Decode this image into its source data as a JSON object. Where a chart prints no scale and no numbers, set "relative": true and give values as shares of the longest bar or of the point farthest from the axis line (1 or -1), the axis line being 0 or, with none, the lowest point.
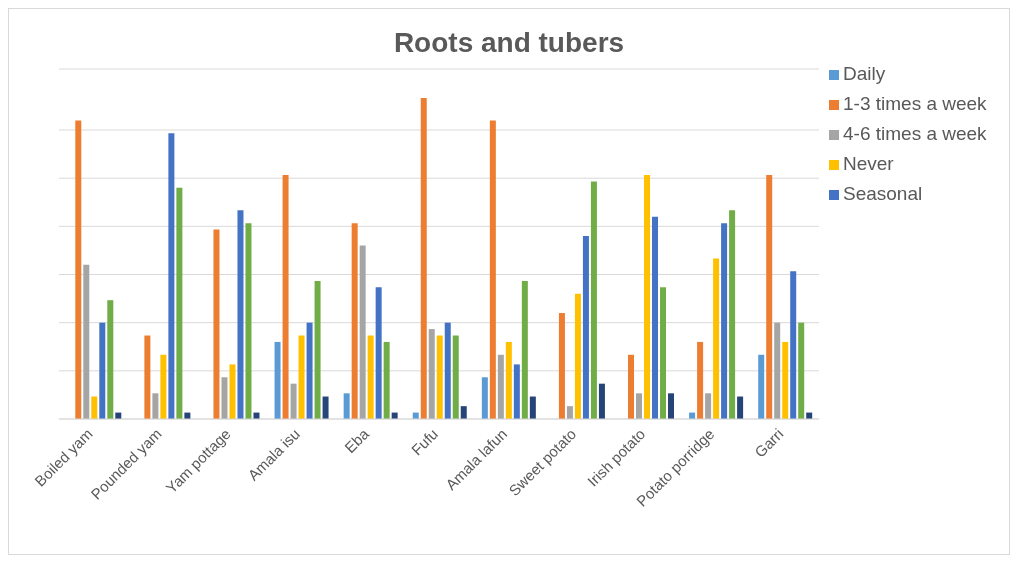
{
  "chart_data": {
    "type": "bar",
    "title": "Roots and tubers",
    "relative": true,
    "grid": "y",
    "legend": "right",
    "categories": [
      "Boiled yam",
      "Pounded yam",
      "Yam pottage",
      "Amala isu",
      "Eba",
      "Fufu",
      "Amala lafun",
      "Sweet potato",
      "Irish potato",
      "Potato porridge",
      "Garri"
    ],
    "series": [
      {
        "name": "Daily",
        "color": "#5b9bd5",
        "values": [
          0,
          0,
          0,
          0.24,
          0.08,
          0.02,
          0.13,
          0,
          0,
          0.02,
          0.2
        ]
      },
      {
        "name": "1-3 times a week",
        "color": "#ed7d31",
        "values": [
          0.93,
          0.26,
          0.59,
          0.76,
          0.61,
          1,
          0.93,
          0.33,
          0.2,
          0.24,
          0.76
        ]
      },
      {
        "name": "4-6 times a week",
        "color": "#a5a5a5",
        "values": [
          0.48,
          0.08,
          0.13,
          0.11,
          0.54,
          0.28,
          0.2,
          0.04,
          0.08,
          0.08,
          0.3
        ]
      },
      {
        "name": "Never",
        "color": "#ffc000",
        "values": [
          0.07,
          0.2,
          0.17,
          0.26,
          0.26,
          0.26,
          0.24,
          0.39,
          0.76,
          0.5,
          0.24
        ]
      },
      {
        "name": "Seasonal",
        "color": "#4472c4",
        "values": [
          0.3,
          0.89,
          0.65,
          0.3,
          0.41,
          0.3,
          0.17,
          0.57,
          0.63,
          0.61,
          0.46
        ]
      },
      {
        "color": "#70ad47",
        "values": [
          0.37,
          0.72,
          0.61,
          0.43,
          0.24,
          0.26,
          0.43,
          0.74,
          0.41,
          0.65,
          0.3
        ]
      },
      {
        "color": "#264478",
        "values": [
          0.02,
          0.02,
          0.02,
          0.07,
          0.02,
          0.04,
          0.07,
          0.11,
          0.08,
          0.07,
          0.02
        ]
      }
    ]
  }
}
